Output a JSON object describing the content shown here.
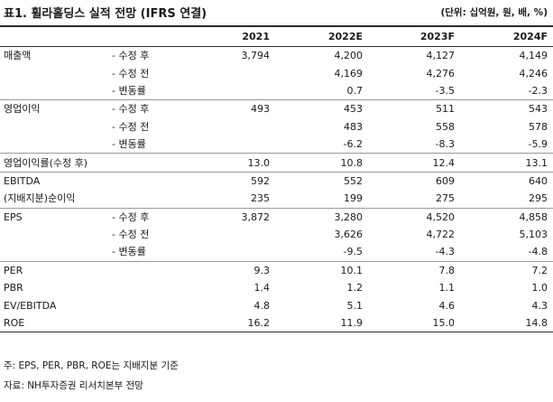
{
  "title": "표1. 휠라홀딩스 실적 전망 (IFRS 연결)",
  "unit": "(단위: 십억원, 원, 배, %)",
  "columns": [
    "2021",
    "2022E",
    "2023F",
    "2024F"
  ],
  "rows": [
    {
      "label": "매출액",
      "sub": "- 수정 후",
      "values": [
        "3,794",
        "4,200",
        "4,127",
        "4,149"
      ],
      "end": false
    },
    {
      "label": "",
      "sub": "- 수정 전",
      "values": [
        "",
        "4,169",
        "4,276",
        "4,246"
      ],
      "end": false
    },
    {
      "label": "",
      "sub": "- 변동률",
      "values": [
        "",
        "0.7",
        "-3.5",
        "-2.3"
      ],
      "end": true
    },
    {
      "label": "영업이익",
      "sub": "- 수정 후",
      "values": [
        "493",
        "453",
        "511",
        "543"
      ],
      "end": false
    },
    {
      "label": "",
      "sub": "- 수정 전",
      "values": [
        "",
        "483",
        "558",
        "578"
      ],
      "end": false
    },
    {
      "label": "",
      "sub": "- 변동률",
      "values": [
        "",
        "-6.2",
        "-8.3",
        "-5.9"
      ],
      "end": true
    },
    {
      "label": "영업이익률(수정 후)",
      "sub": "",
      "values": [
        "13.0",
        "10.8",
        "12.4",
        "13.1"
      ],
      "end": true
    },
    {
      "label": "EBITDA",
      "sub": "",
      "values": [
        "592",
        "552",
        "609",
        "640"
      ],
      "end": false
    },
    {
      "label": "(지배지분)순이익",
      "sub": "",
      "values": [
        "235",
        "199",
        "275",
        "295"
      ],
      "end": true
    },
    {
      "label": "EPS",
      "sub": "- 수정 후",
      "values": [
        "3,872",
        "3,280",
        "4,520",
        "4,858"
      ],
      "end": false
    },
    {
      "label": "",
      "sub": "- 수정 전",
      "values": [
        "",
        "3,626",
        "4,722",
        "5,103"
      ],
      "end": false
    },
    {
      "label": "",
      "sub": "- 변동률",
      "values": [
        "",
        "-9.5",
        "-4.3",
        "-4.8"
      ],
      "end": true
    },
    {
      "label": "PER",
      "sub": "",
      "values": [
        "9.3",
        "10.1",
        "7.8",
        "7.2"
      ],
      "end": false
    },
    {
      "label": "PBR",
      "sub": "",
      "values": [
        "1.4",
        "1.2",
        "1.1",
        "1.0"
      ],
      "end": false
    },
    {
      "label": "EV/EBITDA",
      "sub": "",
      "values": [
        "4.8",
        "5.1",
        "4.6",
        "4.3"
      ],
      "end": false
    },
    {
      "label": "ROE",
      "sub": "",
      "values": [
        "16.2",
        "11.9",
        "15.0",
        "14.8"
      ],
      "end": false
    }
  ],
  "notes": [
    "주: EPS, PER, PBR, ROE는 지배지분 기준",
    "자료: NH투자증권 리서치본부 전망"
  ]
}
